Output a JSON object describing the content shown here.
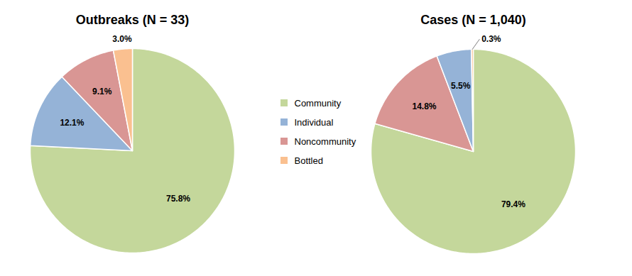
{
  "chart_data": [
    {
      "type": "pie",
      "title": "Outbreaks (N = 33)",
      "categories": [
        "Community",
        "Individual",
        "Noncommunity",
        "Bottled"
      ],
      "values": [
        75.8,
        12.1,
        9.1,
        3.0
      ],
      "value_labels": [
        "75.8%",
        "12.1%",
        "9.1%",
        "3.0%"
      ],
      "colors": [
        "#c4d79b",
        "#95b3d7",
        "#d99694",
        "#fac090"
      ],
      "data_labels": true,
      "legend": "right"
    },
    {
      "type": "pie",
      "title": "Cases (N = 1,040)",
      "categories": [
        "Community",
        "Noncommunity",
        "Individual",
        "Bottled"
      ],
      "values": [
        79.4,
        14.8,
        5.5,
        0.3
      ],
      "value_labels": [
        "79.4%",
        "14.8%",
        "5.5%",
        "0.3%"
      ],
      "colors": [
        "#c4d79b",
        "#d99694",
        "#95b3d7",
        "#fac090"
      ],
      "data_labels": true
    }
  ]
}
